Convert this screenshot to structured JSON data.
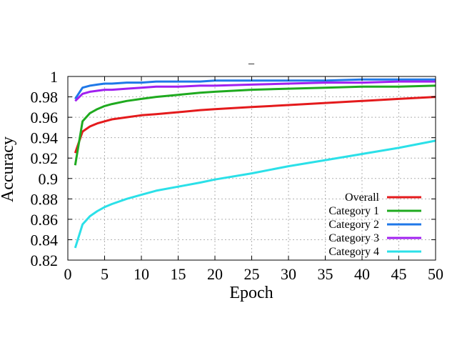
{
  "chart_data": {
    "type": "line",
    "title": "_",
    "xlabel": "Epoch",
    "ylabel": "Accuracy",
    "xlim": [
      0,
      50
    ],
    "ylim": [
      0.82,
      1.0
    ],
    "xticks": [
      0,
      5,
      10,
      15,
      20,
      25,
      30,
      35,
      40,
      45,
      50
    ],
    "yticks": [
      0.82,
      0.84,
      0.86,
      0.88,
      0.9,
      0.92,
      0.94,
      0.96,
      0.98,
      1
    ],
    "xtick_labels": [
      "0",
      "5",
      "10",
      "15",
      "20",
      "25",
      "30",
      "35",
      "40",
      "45",
      "50"
    ],
    "ytick_labels": [
      "0.82",
      "0.84",
      "0.86",
      "0.88",
      "0.9",
      "0.92",
      "0.94",
      "0.96",
      "0.98",
      "1"
    ],
    "grid": true,
    "legend_position": "bottom-right",
    "x": [
      1,
      2,
      3,
      4,
      5,
      6,
      8,
      10,
      12,
      15,
      18,
      20,
      25,
      30,
      35,
      40,
      45,
      50
    ],
    "series": [
      {
        "name": "Overall",
        "color": "#e41a1c",
        "values": [
          0.925,
          0.946,
          0.951,
          0.954,
          0.956,
          0.958,
          0.96,
          0.962,
          0.963,
          0.965,
          0.967,
          0.968,
          0.97,
          0.972,
          0.974,
          0.976,
          0.978,
          0.98
        ]
      },
      {
        "name": "Category 1",
        "color": "#1faa1f",
        "values": [
          0.913,
          0.956,
          0.964,
          0.968,
          0.971,
          0.973,
          0.976,
          0.978,
          0.98,
          0.982,
          0.984,
          0.985,
          0.987,
          0.988,
          0.989,
          0.99,
          0.99,
          0.991
        ]
      },
      {
        "name": "Category 2",
        "color": "#1f78e8",
        "values": [
          0.978,
          0.989,
          0.991,
          0.992,
          0.993,
          0.993,
          0.994,
          0.994,
          0.995,
          0.995,
          0.995,
          0.996,
          0.996,
          0.996,
          0.996,
          0.997,
          0.997,
          0.997
        ]
      },
      {
        "name": "Category 3",
        "color": "#a020f0",
        "values": [
          0.976,
          0.983,
          0.985,
          0.986,
          0.987,
          0.987,
          0.988,
          0.989,
          0.99,
          0.99,
          0.991,
          0.991,
          0.992,
          0.993,
          0.994,
          0.994,
          0.995,
          0.995
        ]
      },
      {
        "name": "Category 4",
        "color": "#2be0e8",
        "values": [
          0.832,
          0.855,
          0.863,
          0.868,
          0.872,
          0.875,
          0.88,
          0.884,
          0.888,
          0.892,
          0.896,
          0.899,
          0.905,
          0.912,
          0.918,
          0.924,
          0.93,
          0.937
        ]
      }
    ]
  }
}
